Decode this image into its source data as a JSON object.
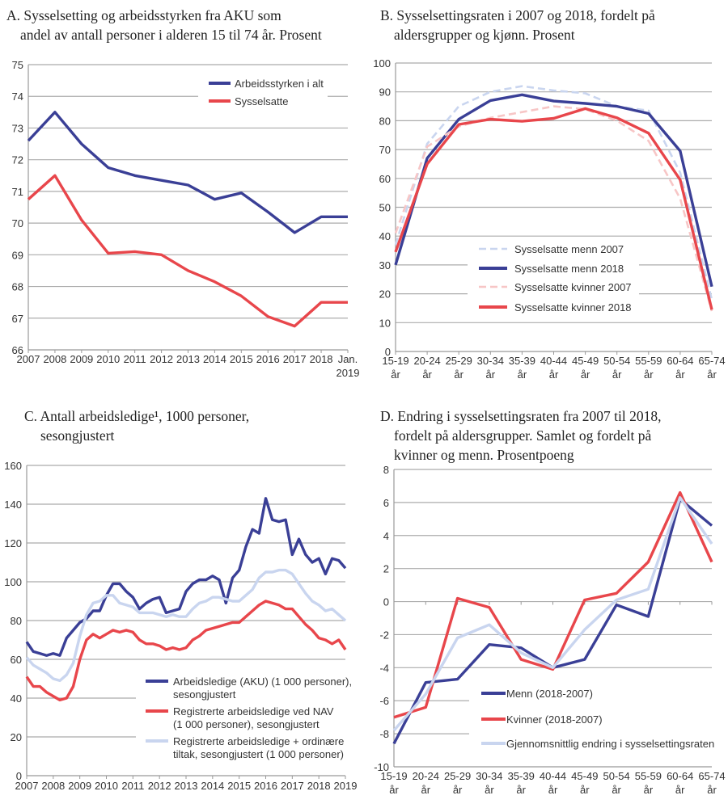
{
  "colors": {
    "blue": "#3a3f96",
    "red": "#e8464b",
    "light_blue": "#c9d5ef",
    "light_red": "#f7c6c6",
    "grid": "#ababab"
  },
  "chart_data": [
    {
      "type": "line",
      "title_lines": [
        "A. Sysselsetting og arbeidsstyrken fra AKU som",
        "andel av antall personer i alderen 15 til 74 år. Prosent"
      ],
      "categories": [
        [
          "2007"
        ],
        [
          "2008"
        ],
        [
          "2009"
        ],
        [
          "2010"
        ],
        [
          "2011"
        ],
        [
          "2012"
        ],
        [
          "2013"
        ],
        [
          "2014"
        ],
        [
          "2015"
        ],
        [
          "2016"
        ],
        [
          "2017"
        ],
        [
          "2018"
        ],
        [
          "Jan.",
          "2019"
        ]
      ],
      "ylim": [
        66,
        75
      ],
      "ystep": 1,
      "grid": true,
      "legend": "top-right",
      "series": [
        {
          "name_lines": [
            "Arbeidsstyrken i alt"
          ],
          "color": "#3a3f96",
          "style": "solid",
          "values": [
            72.6,
            73.5,
            72.5,
            71.75,
            71.5,
            71.35,
            71.2,
            70.75,
            70.95,
            70.35,
            69.7,
            70.2,
            70.2
          ]
        },
        {
          "name_lines": [
            "Sysselsatte"
          ],
          "color": "#e8464b",
          "style": "solid",
          "values": [
            70.75,
            71.5,
            70.1,
            69.05,
            69.1,
            69.0,
            68.5,
            68.15,
            67.7,
            67.05,
            66.75,
            67.5,
            67.5
          ]
        }
      ]
    },
    {
      "type": "line",
      "title_lines": [
        "B. Sysselsettingsraten i 2007 og 2018, fordelt på",
        "aldersgrupper og kjønn. Prosent"
      ],
      "categories": [
        [
          "15-19",
          "år"
        ],
        [
          "20-24",
          "år"
        ],
        [
          "25-29",
          "år"
        ],
        [
          "30-34",
          "år"
        ],
        [
          "35-39",
          "år"
        ],
        [
          "40-44",
          "år"
        ],
        [
          "45-49",
          "år"
        ],
        [
          "50-54",
          "år"
        ],
        [
          "55-59",
          "år"
        ],
        [
          "60-64",
          "år"
        ],
        [
          "65-74",
          "år"
        ]
      ],
      "ylim": [
        0,
        100
      ],
      "ystep": 10,
      "grid": true,
      "legend": "bottom-center",
      "series": [
        {
          "name_lines": [
            "Sysselsatte menn 2007"
          ],
          "color": "#c9d5ef",
          "style": "dashed",
          "values": [
            37,
            72,
            85,
            90,
            92,
            90.5,
            89.5,
            85,
            83.5,
            62,
            18
          ]
        },
        {
          "name_lines": [
            " Sysselsatte menn 2018"
          ],
          "color": "#3a3f96",
          "style": "solid",
          "values": [
            30,
            67,
            80.5,
            87,
            89,
            86.8,
            86,
            85,
            82.5,
            69.5,
            22.5
          ]
        },
        {
          "name_lines": [
            "Sysselsatte kvinner 2007"
          ],
          "color": "#f7c6c6",
          "style": "dashed",
          "values": [
            41,
            71,
            78,
            81,
            83,
            85,
            84,
            80,
            73,
            53,
            14
          ]
        },
        {
          "name_lines": [
            "Sysselsatte kvinner 2018"
          ],
          "color": "#e8464b",
          "style": "solid",
          "values": [
            34.5,
            65,
            78.7,
            80.5,
            79.8,
            80.8,
            84.2,
            81,
            75.7,
            59.5,
            14.5
          ]
        }
      ]
    },
    {
      "type": "line",
      "title_lines": [
        "C. Antall arbeidsledige¹, 1000 personer,",
        "sesongjustert"
      ],
      "xticks": [
        "2007",
        "2008",
        "2009",
        "2010",
        "2011",
        "2012",
        "2013",
        "2014",
        "2015",
        "2016",
        "2017",
        "2018",
        "2019"
      ],
      "x": [
        "2007-01",
        "2007-04",
        "2007-07",
        "2007-10",
        "2008-01",
        "2008-04",
        "2008-07",
        "2008-10",
        "2009-01",
        "2009-04",
        "2009-07",
        "2009-10",
        "2010-01",
        "2010-04",
        "2010-07",
        "2010-10",
        "2011-01",
        "2011-04",
        "2011-07",
        "2011-10",
        "2012-01",
        "2012-04",
        "2012-07",
        "2012-10",
        "2013-01",
        "2013-04",
        "2013-07",
        "2013-10",
        "2014-01",
        "2014-04",
        "2014-07",
        "2014-10",
        "2015-01",
        "2015-04",
        "2015-07",
        "2015-10",
        "2016-01",
        "2016-04",
        "2016-07",
        "2016-10",
        "2017-01",
        "2017-04",
        "2017-07",
        "2017-10",
        "2018-01",
        "2018-04",
        "2018-07",
        "2018-10",
        "2019-01"
      ],
      "ylim": [
        0,
        160
      ],
      "ystep": 20,
      "grid": true,
      "legend": "bottom-right",
      "series": [
        {
          "name_lines": [
            "Arbeidsledige (AKU) (1 000 personer),",
            "sesongjustert"
          ],
          "color": "#3a3f96",
          "style": "solid",
          "values": [
            69,
            64,
            63,
            62,
            63,
            62,
            71,
            75,
            79,
            81,
            85,
            85,
            93,
            99,
            99,
            95,
            92,
            86,
            89,
            91,
            92,
            84,
            85,
            86,
            95,
            99,
            101,
            101,
            103,
            101,
            89,
            102,
            106,
            118,
            127,
            125,
            143,
            132,
            131,
            132,
            114,
            122,
            114,
            110,
            112,
            104,
            112,
            111,
            107
          ]
        },
        {
          "name_lines": [
            "Registrerte arbeidsledige ved NAV",
            "(1 000 personer), sesongjustert"
          ],
          "color": "#e8464b",
          "style": "solid",
          "values": [
            51,
            46,
            46,
            43,
            41,
            39,
            40,
            46,
            60,
            70,
            73,
            71,
            73,
            75,
            74,
            75,
            74,
            70,
            68,
            68,
            67,
            65,
            66,
            65,
            66,
            70,
            72,
            75,
            76,
            77,
            78,
            79,
            79,
            82,
            85,
            88,
            90,
            89,
            88,
            86,
            86,
            82,
            78,
            75,
            71,
            70,
            68,
            70,
            65
          ]
        },
        {
          "name_lines": [
            "Registrerte arbeidsledige + ordinære",
            "tiltak, sesongjustert (1 000 personer)"
          ],
          "color": "#c9d5ef",
          "style": "solid",
          "values": [
            61,
            57,
            55,
            53,
            50,
            49,
            52,
            58,
            72,
            83,
            89,
            90,
            93,
            93,
            89,
            88,
            87,
            84,
            84,
            84,
            83,
            82,
            83,
            82,
            82,
            86,
            89,
            90,
            92,
            92,
            91,
            90,
            90,
            93,
            96,
            102,
            105,
            105,
            106,
            106,
            104,
            99,
            94,
            90,
            88,
            85,
            86,
            83,
            80
          ]
        }
      ]
    },
    {
      "type": "line",
      "title_lines": [
        "D. Endring i sysselsettingsraten fra 2007 til 2018,",
        "fordelt på aldersgrupper. Samlet og fordelt på",
        "kvinner og menn. Prosentpoeng"
      ],
      "categories": [
        [
          "15-19",
          "år"
        ],
        [
          "20-24",
          "år"
        ],
        [
          "25-29",
          "år"
        ],
        [
          "30-34",
          "år"
        ],
        [
          "35-39",
          "år"
        ],
        [
          "40-44",
          "år"
        ],
        [
          "45-49",
          "år"
        ],
        [
          "50-54",
          "år"
        ],
        [
          "55-59",
          "år"
        ],
        [
          "60-64",
          "år"
        ],
        [
          "65-74",
          "år"
        ]
      ],
      "ylim": [
        -10,
        8
      ],
      "ystep": 2,
      "grid": true,
      "legend": "bottom-right",
      "series": [
        {
          "name_lines": [
            "Menn (2018-2007)"
          ],
          "color": "#3a3f96",
          "style": "solid",
          "values": [
            -8.6,
            -4.9,
            -4.7,
            -2.6,
            -2.8,
            -4.0,
            -3.5,
            -0.2,
            -0.9,
            6.2,
            4.6
          ]
        },
        {
          "name_lines": [
            " Kvinner (2018-2007)"
          ],
          "color": "#e8464b",
          "style": "solid",
          "values": [
            -7.0,
            -6.4,
            0.2,
            -0.35,
            -3.5,
            -4.1,
            0.1,
            0.5,
            2.4,
            6.6,
            2.4
          ]
        },
        {
          "name_lines": [
            "Gjennomsnittlig endring i sysselsettingsraten"
          ],
          "color": "#c9d5ef",
          "style": "solid",
          "values": [
            -7.8,
            -5.6,
            -2.2,
            -1.4,
            -3.1,
            -4.0,
            -1.7,
            0.1,
            0.75,
            6.3,
            3.5
          ]
        }
      ]
    }
  ]
}
